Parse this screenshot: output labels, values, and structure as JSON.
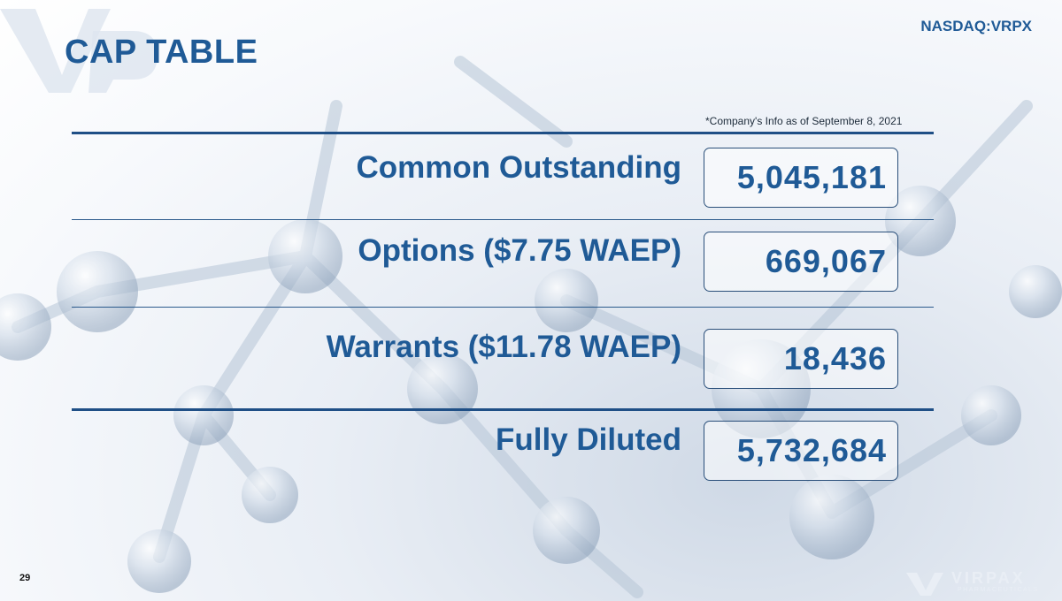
{
  "header": {
    "title": "CAP TABLE",
    "ticker": "NASDAQ:VRPX"
  },
  "footnote": "*Company's Info as of September 8, 2021",
  "rows": [
    {
      "label": "Common Outstanding",
      "value": "5,045,181"
    },
    {
      "label": "Options ($7.75 WAEP)",
      "value": "669,067"
    },
    {
      "label": "Warrants ($11.78 WAEP)",
      "value": "18,436"
    },
    {
      "label": "Fully Diluted",
      "value": "5,732,684"
    }
  ],
  "footer": {
    "page_number": "29",
    "brand_name": "VIRPAX",
    "brand_sub": "PHARMACEUTICALS"
  },
  "colors": {
    "accent": "#1f5a96",
    "rule": "#1f4f86",
    "background": "#e9eef5"
  },
  "icons": {
    "watermark": "vp-logo-watermark",
    "brand": "virpax-logo"
  }
}
